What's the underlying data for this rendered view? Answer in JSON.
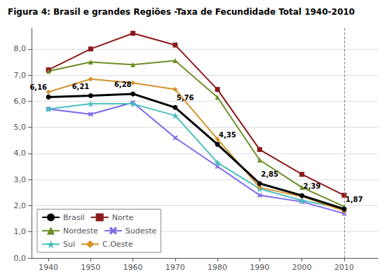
{
  "chart_data": {
    "type": "line",
    "title": "Figura 4: Brasil e grandes Regiões -Taxa de Fecundidade Total 1940-2010",
    "x": [
      1940,
      1950,
      1960,
      1970,
      1980,
      1990,
      2000,
      2010
    ],
    "series": [
      {
        "name": "Brasil",
        "color": "#000000",
        "marker": "circle",
        "values": [
          6.16,
          6.21,
          6.28,
          5.76,
          4.35,
          2.85,
          2.39,
          1.87
        ],
        "data_labels": true,
        "value_labels": [
          "6,16",
          "6,21",
          "6,28",
          "5,76",
          "4,35",
          "2,85",
          "2,39",
          "1,87"
        ]
      },
      {
        "name": "Norte",
        "color": "#8B1A1A",
        "marker": "square",
        "values": [
          7.2,
          8.0,
          8.6,
          8.15,
          6.45,
          4.15,
          3.2,
          2.4
        ]
      },
      {
        "name": "Nordeste",
        "color": "#6B8E23",
        "marker": "triangle",
        "values": [
          7.15,
          7.5,
          7.4,
          7.55,
          6.15,
          3.75,
          2.7,
          1.97
        ]
      },
      {
        "name": "Sudeste",
        "color": "#7B68EE",
        "marker": "x",
        "values": [
          5.7,
          5.5,
          5.95,
          4.6,
          3.5,
          2.4,
          2.15,
          1.7
        ]
      },
      {
        "name": "Sul",
        "color": "#4ABFBF",
        "marker": "star",
        "values": [
          5.7,
          5.9,
          5.9,
          5.45,
          3.65,
          2.65,
          2.2,
          1.9
        ]
      },
      {
        "name": "C.Oeste",
        "color": "#D4922A",
        "marker": "diamond",
        "values": [
          6.35,
          6.85,
          6.7,
          6.45,
          4.55,
          2.7,
          2.35,
          1.8
        ]
      }
    ],
    "xlim": [
      1936,
      2018
    ],
    "xticks": [
      1940,
      1950,
      1960,
      1970,
      1980,
      1990,
      2000,
      2010
    ],
    "ylim": [
      0.0,
      8.8
    ],
    "yticks": [
      {
        "value": 0.0,
        "label": "0,0"
      },
      {
        "value": 1.0,
        "label": "1,0"
      },
      {
        "value": 2.0,
        "label": "2,0"
      },
      {
        "value": 3.0,
        "label": "3,0"
      },
      {
        "value": 4.0,
        "label": "4,0"
      },
      {
        "value": 5.0,
        "label": "5,0"
      },
      {
        "value": 6.0,
        "label": "6,0"
      },
      {
        "value": 7.0,
        "label": "7,0"
      },
      {
        "value": 8.0,
        "label": "8,0"
      }
    ],
    "vline_x": 2010,
    "grid": "y",
    "legend": "lower left"
  }
}
